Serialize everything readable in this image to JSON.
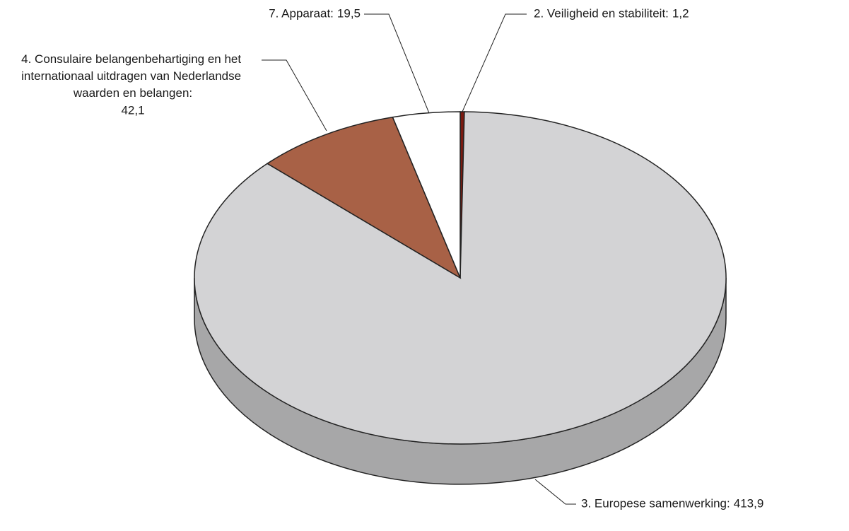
{
  "chart_data": {
    "type": "pie",
    "categories": [
      "2. Veiligheid en stabiliteit:",
      "3. Europese samenwerking:",
      "4. Consulaire belangenbehartiging en het internationaal uitdragen van Nederlandse waarden en belangen:",
      "7. Apparaat:"
    ],
    "values": [
      1.2,
      413.9,
      42.1,
      19.5
    ],
    "value_labels": [
      "1,2",
      "413,9",
      "42,1",
      "19,5"
    ],
    "colors": [
      "#7a1a10",
      "#d3d3d5",
      "#a86146",
      "#ffffff"
    ],
    "three_d": true
  }
}
